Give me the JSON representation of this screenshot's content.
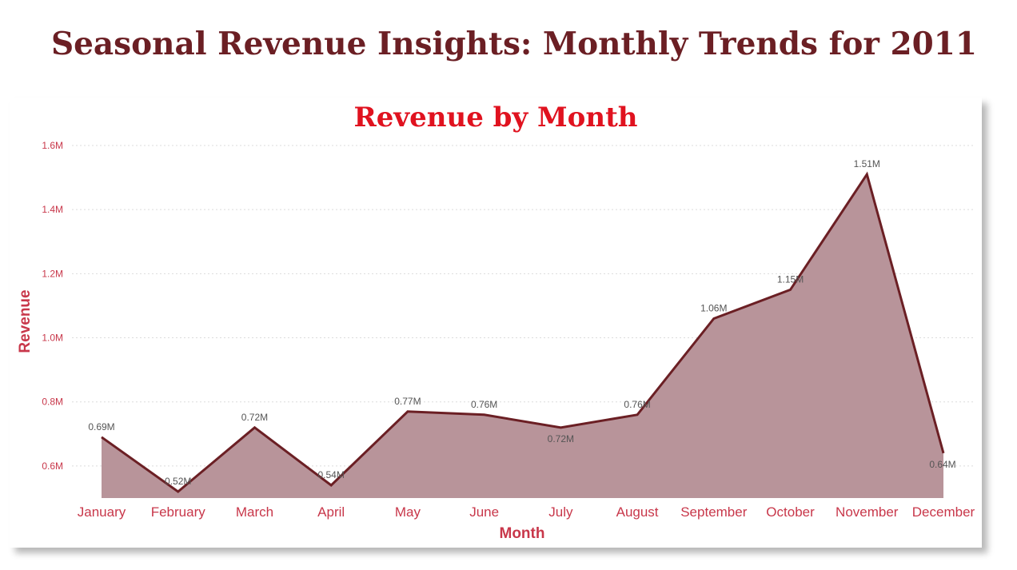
{
  "page": {
    "title": "Seasonal Revenue Insights: Monthly Trends for 2011"
  },
  "colors": {
    "page_title": "#6b1f24",
    "chart_title": "#e0121f",
    "axis_text": "#c8374a",
    "line": "#6b1f24",
    "area_fill": "#b8949a",
    "data_label": "#555555"
  },
  "chart_data": {
    "type": "area",
    "title": "Revenue by Month",
    "xlabel": "Month",
    "ylabel": "Revenue",
    "categories": [
      "January",
      "February",
      "March",
      "April",
      "May",
      "June",
      "July",
      "August",
      "September",
      "October",
      "November",
      "December"
    ],
    "series": [
      {
        "values": [
          0.69,
          0.52,
          0.72,
          0.54,
          0.77,
          0.76,
          0.72,
          0.76,
          1.06,
          1.15,
          1.51,
          0.64
        ],
        "labels": [
          "0.69M",
          "0.52M",
          "0.72M",
          "0.54M",
          "0.77M",
          "0.76M",
          "0.72M",
          "0.76M",
          "1.06M",
          "1.15M",
          "1.51M",
          "0.64M"
        ]
      }
    ],
    "value_unit": "M",
    "y_ticks": [
      "0.6M",
      "0.8M",
      "1.0M",
      "1.2M",
      "1.4M",
      "1.6M"
    ],
    "y_tick_values": [
      0.6,
      0.8,
      1.0,
      1.2,
      1.4,
      1.6
    ],
    "ylim": [
      0.5,
      1.6
    ],
    "grid": true,
    "legend": "none"
  }
}
